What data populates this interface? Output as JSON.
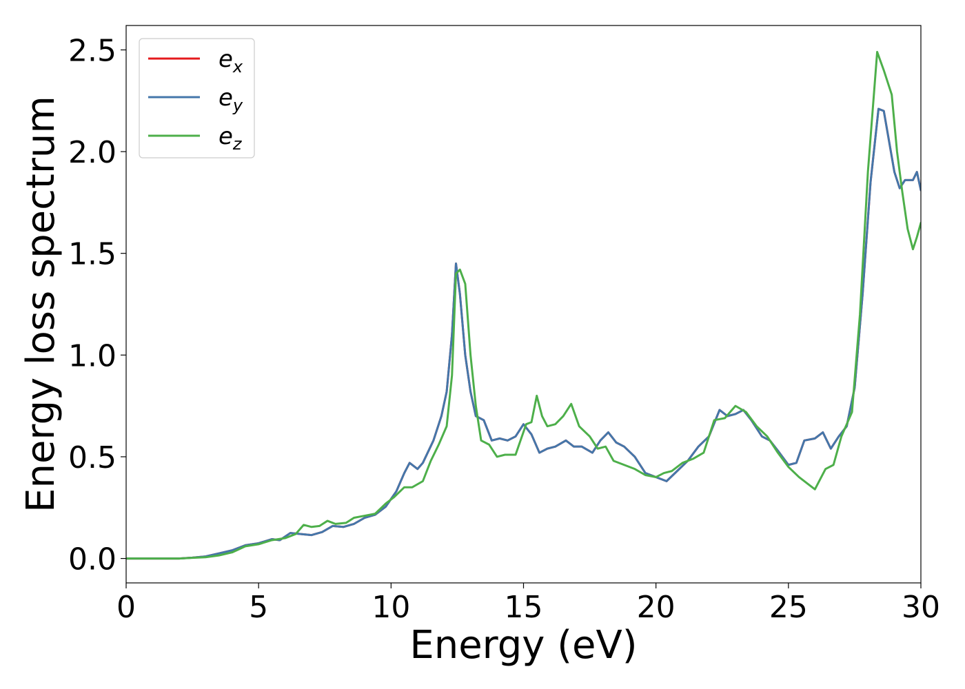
{
  "chart_data": {
    "type": "line",
    "xlabel": "Energy (eV)",
    "ylabel": "Energy loss spectrum",
    "xlim": [
      0,
      30
    ],
    "ylim": [
      -0.12,
      2.62
    ],
    "xticks": [
      0,
      5,
      10,
      15,
      20,
      25,
      30
    ],
    "yticks": [
      0.0,
      0.5,
      1.0,
      1.5,
      2.0,
      2.5
    ],
    "xtick_labels": [
      "0",
      "5",
      "10",
      "15",
      "20",
      "25",
      "30"
    ],
    "ytick_labels": [
      "0.0",
      "0.5",
      "1.0",
      "1.5",
      "2.0",
      "2.5"
    ],
    "grid": false,
    "legend_position": "top-left",
    "series": [
      {
        "name": "e",
        "subscript": "x",
        "color": "#e41a1c",
        "points": [
          [
            0,
            0
          ],
          [
            1,
            0
          ],
          [
            2,
            0
          ],
          [
            2.5,
            0.004
          ],
          [
            3,
            0.01
          ],
          [
            3.5,
            0.025
          ],
          [
            4,
            0.04
          ],
          [
            4.5,
            0.065
          ],
          [
            5,
            0.075
          ],
          [
            5.5,
            0.095
          ],
          [
            5.8,
            0.09
          ],
          [
            6.2,
            0.125
          ],
          [
            6.6,
            0.12
          ],
          [
            7,
            0.115
          ],
          [
            7.4,
            0.13
          ],
          [
            7.8,
            0.16
          ],
          [
            8.2,
            0.155
          ],
          [
            8.6,
            0.17
          ],
          [
            9,
            0.2
          ],
          [
            9.4,
            0.215
          ],
          [
            9.8,
            0.255
          ],
          [
            10.2,
            0.33
          ],
          [
            10.5,
            0.42
          ],
          [
            10.7,
            0.47
          ],
          [
            11,
            0.44
          ],
          [
            11.2,
            0.47
          ],
          [
            11.6,
            0.58
          ],
          [
            11.9,
            0.7
          ],
          [
            12.1,
            0.82
          ],
          [
            12.3,
            1.1
          ],
          [
            12.45,
            1.45
          ],
          [
            12.6,
            1.3
          ],
          [
            12.8,
            1.0
          ],
          [
            13,
            0.82
          ],
          [
            13.2,
            0.7
          ],
          [
            13.5,
            0.68
          ],
          [
            13.8,
            0.58
          ],
          [
            14.1,
            0.59
          ],
          [
            14.4,
            0.58
          ],
          [
            14.7,
            0.6
          ],
          [
            15,
            0.66
          ],
          [
            15.3,
            0.61
          ],
          [
            15.6,
            0.52
          ],
          [
            15.9,
            0.54
          ],
          [
            16.2,
            0.55
          ],
          [
            16.6,
            0.58
          ],
          [
            16.9,
            0.55
          ],
          [
            17.2,
            0.55
          ],
          [
            17.6,
            0.52
          ],
          [
            17.9,
            0.58
          ],
          [
            18.2,
            0.62
          ],
          [
            18.5,
            0.57
          ],
          [
            18.8,
            0.55
          ],
          [
            19.2,
            0.5
          ],
          [
            19.6,
            0.42
          ],
          [
            19.8,
            0.41
          ],
          [
            20,
            0.4
          ],
          [
            20.4,
            0.38
          ],
          [
            20.8,
            0.43
          ],
          [
            21.2,
            0.48
          ],
          [
            21.6,
            0.55
          ],
          [
            22,
            0.6
          ],
          [
            22.4,
            0.73
          ],
          [
            22.7,
            0.7
          ],
          [
            23,
            0.71
          ],
          [
            23.3,
            0.73
          ],
          [
            23.6,
            0.68
          ],
          [
            24,
            0.6
          ],
          [
            24.3,
            0.58
          ],
          [
            24.6,
            0.53
          ],
          [
            25,
            0.46
          ],
          [
            25.3,
            0.47
          ],
          [
            25.6,
            0.58
          ],
          [
            26,
            0.59
          ],
          [
            26.3,
            0.62
          ],
          [
            26.6,
            0.54
          ],
          [
            26.9,
            0.6
          ],
          [
            27.2,
            0.65
          ],
          [
            27.5,
            0.84
          ],
          [
            27.8,
            1.3
          ],
          [
            28.1,
            1.85
          ],
          [
            28.4,
            2.21
          ],
          [
            28.6,
            2.2
          ],
          [
            28.8,
            2.05
          ],
          [
            29,
            1.9
          ],
          [
            29.2,
            1.82
          ],
          [
            29.4,
            1.86
          ],
          [
            29.7,
            1.86
          ],
          [
            29.85,
            1.9
          ],
          [
            30,
            1.81
          ]
        ]
      },
      {
        "name": "e",
        "subscript": "y",
        "color": "#4477aa",
        "points": [
          [
            0,
            0
          ],
          [
            1,
            0
          ],
          [
            2,
            0
          ],
          [
            2.5,
            0.004
          ],
          [
            3,
            0.01
          ],
          [
            3.5,
            0.025
          ],
          [
            4,
            0.04
          ],
          [
            4.5,
            0.065
          ],
          [
            5,
            0.075
          ],
          [
            5.5,
            0.095
          ],
          [
            5.8,
            0.09
          ],
          [
            6.2,
            0.125
          ],
          [
            6.6,
            0.12
          ],
          [
            7,
            0.115
          ],
          [
            7.4,
            0.13
          ],
          [
            7.8,
            0.16
          ],
          [
            8.2,
            0.155
          ],
          [
            8.6,
            0.17
          ],
          [
            9,
            0.2
          ],
          [
            9.4,
            0.215
          ],
          [
            9.8,
            0.255
          ],
          [
            10.2,
            0.33
          ],
          [
            10.5,
            0.42
          ],
          [
            10.7,
            0.47
          ],
          [
            11,
            0.44
          ],
          [
            11.2,
            0.47
          ],
          [
            11.6,
            0.58
          ],
          [
            11.9,
            0.7
          ],
          [
            12.1,
            0.82
          ],
          [
            12.3,
            1.1
          ],
          [
            12.45,
            1.45
          ],
          [
            12.6,
            1.3
          ],
          [
            12.8,
            1.0
          ],
          [
            13,
            0.82
          ],
          [
            13.2,
            0.7
          ],
          [
            13.5,
            0.68
          ],
          [
            13.8,
            0.58
          ],
          [
            14.1,
            0.59
          ],
          [
            14.4,
            0.58
          ],
          [
            14.7,
            0.6
          ],
          [
            15,
            0.66
          ],
          [
            15.3,
            0.61
          ],
          [
            15.6,
            0.52
          ],
          [
            15.9,
            0.54
          ],
          [
            16.2,
            0.55
          ],
          [
            16.6,
            0.58
          ],
          [
            16.9,
            0.55
          ],
          [
            17.2,
            0.55
          ],
          [
            17.6,
            0.52
          ],
          [
            17.9,
            0.58
          ],
          [
            18.2,
            0.62
          ],
          [
            18.5,
            0.57
          ],
          [
            18.8,
            0.55
          ],
          [
            19.2,
            0.5
          ],
          [
            19.6,
            0.42
          ],
          [
            19.8,
            0.41
          ],
          [
            20,
            0.4
          ],
          [
            20.4,
            0.38
          ],
          [
            20.8,
            0.43
          ],
          [
            21.2,
            0.48
          ],
          [
            21.6,
            0.55
          ],
          [
            22,
            0.6
          ],
          [
            22.4,
            0.73
          ],
          [
            22.7,
            0.7
          ],
          [
            23,
            0.71
          ],
          [
            23.3,
            0.73
          ],
          [
            23.6,
            0.68
          ],
          [
            24,
            0.6
          ],
          [
            24.3,
            0.58
          ],
          [
            24.6,
            0.53
          ],
          [
            25,
            0.46
          ],
          [
            25.3,
            0.47
          ],
          [
            25.6,
            0.58
          ],
          [
            26,
            0.59
          ],
          [
            26.3,
            0.62
          ],
          [
            26.6,
            0.54
          ],
          [
            26.9,
            0.6
          ],
          [
            27.2,
            0.65
          ],
          [
            27.5,
            0.84
          ],
          [
            27.8,
            1.3
          ],
          [
            28.1,
            1.85
          ],
          [
            28.4,
            2.21
          ],
          [
            28.6,
            2.2
          ],
          [
            28.8,
            2.05
          ],
          [
            29,
            1.9
          ],
          [
            29.2,
            1.82
          ],
          [
            29.4,
            1.86
          ],
          [
            29.7,
            1.86
          ],
          [
            29.85,
            1.9
          ],
          [
            30,
            1.81
          ]
        ]
      },
      {
        "name": "e",
        "subscript": "z",
        "color": "#4daf4a",
        "points": [
          [
            0,
            0
          ],
          [
            1,
            0
          ],
          [
            2,
            0
          ],
          [
            2.5,
            0.003
          ],
          [
            3,
            0.006
          ],
          [
            3.5,
            0.015
          ],
          [
            4,
            0.03
          ],
          [
            4.5,
            0.06
          ],
          [
            5,
            0.07
          ],
          [
            5.5,
            0.09
          ],
          [
            6,
            0.1
          ],
          [
            6.4,
            0.12
          ],
          [
            6.7,
            0.165
          ],
          [
            7,
            0.155
          ],
          [
            7.3,
            0.16
          ],
          [
            7.6,
            0.185
          ],
          [
            7.9,
            0.17
          ],
          [
            8.3,
            0.175
          ],
          [
            8.6,
            0.2
          ],
          [
            9,
            0.21
          ],
          [
            9.4,
            0.22
          ],
          [
            9.8,
            0.27
          ],
          [
            10.1,
            0.3
          ],
          [
            10.5,
            0.35
          ],
          [
            10.8,
            0.35
          ],
          [
            11.2,
            0.38
          ],
          [
            11.5,
            0.48
          ],
          [
            11.8,
            0.56
          ],
          [
            12.1,
            0.65
          ],
          [
            12.3,
            0.9
          ],
          [
            12.45,
            1.4
          ],
          [
            12.6,
            1.42
          ],
          [
            12.8,
            1.35
          ],
          [
            13,
            1.0
          ],
          [
            13.2,
            0.75
          ],
          [
            13.4,
            0.58
          ],
          [
            13.7,
            0.56
          ],
          [
            14,
            0.5
          ],
          [
            14.3,
            0.51
          ],
          [
            14.7,
            0.51
          ],
          [
            15.1,
            0.66
          ],
          [
            15.3,
            0.67
          ],
          [
            15.5,
            0.8
          ],
          [
            15.7,
            0.7
          ],
          [
            15.9,
            0.65
          ],
          [
            16.2,
            0.66
          ],
          [
            16.5,
            0.7
          ],
          [
            16.8,
            0.76
          ],
          [
            17.1,
            0.65
          ],
          [
            17.5,
            0.6
          ],
          [
            17.8,
            0.54
          ],
          [
            18.1,
            0.55
          ],
          [
            18.4,
            0.48
          ],
          [
            18.8,
            0.46
          ],
          [
            19.2,
            0.44
          ],
          [
            19.6,
            0.41
          ],
          [
            20,
            0.4
          ],
          [
            20.3,
            0.42
          ],
          [
            20.6,
            0.43
          ],
          [
            21,
            0.47
          ],
          [
            21.4,
            0.49
          ],
          [
            21.8,
            0.52
          ],
          [
            22.2,
            0.68
          ],
          [
            22.6,
            0.69
          ],
          [
            23,
            0.75
          ],
          [
            23.4,
            0.72
          ],
          [
            23.8,
            0.65
          ],
          [
            24.2,
            0.6
          ],
          [
            24.6,
            0.52
          ],
          [
            25,
            0.45
          ],
          [
            25.4,
            0.4
          ],
          [
            25.8,
            0.36
          ],
          [
            26,
            0.34
          ],
          [
            26.4,
            0.44
          ],
          [
            26.7,
            0.46
          ],
          [
            27,
            0.6
          ],
          [
            27.4,
            0.72
          ],
          [
            27.7,
            1.2
          ],
          [
            28,
            1.9
          ],
          [
            28.35,
            2.49
          ],
          [
            28.6,
            2.4
          ],
          [
            28.9,
            2.28
          ],
          [
            29.1,
            2.0
          ],
          [
            29.3,
            1.8
          ],
          [
            29.5,
            1.62
          ],
          [
            29.7,
            1.52
          ],
          [
            29.85,
            1.58
          ],
          [
            30,
            1.65
          ]
        ]
      }
    ]
  }
}
